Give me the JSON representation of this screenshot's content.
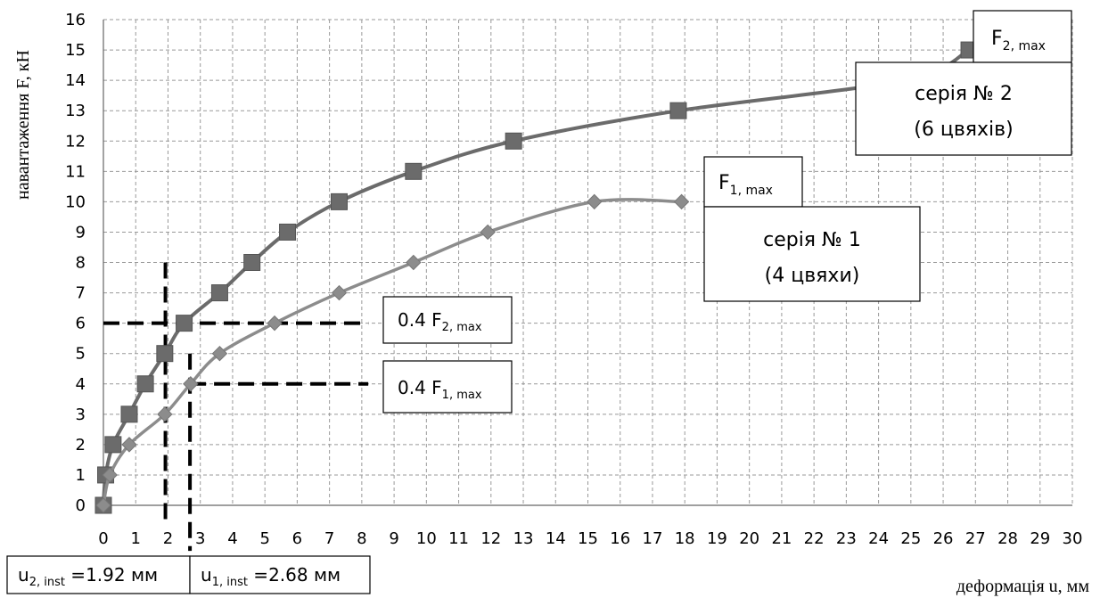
{
  "chart_data": {
    "type": "line",
    "xlabel": "деформація  u, мм",
    "ylabel": "навантаження F, кН",
    "xlim": [
      0,
      30
    ],
    "ylim": [
      0,
      16
    ],
    "xticks": [
      "0",
      "1",
      "2",
      "3",
      "4",
      "5",
      "6",
      "7",
      "8",
      "9",
      "10",
      "11",
      "12",
      "13",
      "14",
      "15",
      "16",
      "17",
      "18",
      "19",
      "20",
      "21",
      "22",
      "23",
      "24",
      "25",
      "26",
      "27",
      "28",
      "29",
      "30"
    ],
    "yticks": [
      "0",
      "1",
      "2",
      "3",
      "4",
      "5",
      "6",
      "7",
      "8",
      "9",
      "10",
      "11",
      "12",
      "13",
      "14",
      "15",
      "16"
    ],
    "grid": true,
    "series": [
      {
        "marker": "square",
        "color": "#6b6b6b",
        "x": [
          0,
          0.07,
          0.3,
          0.8,
          1.3,
          1.9,
          2.5,
          3.6,
          4.6,
          5.7,
          7.3,
          9.6,
          12.7,
          17.8,
          24.8,
          26.8
        ],
        "y": [
          0,
          1,
          2,
          3,
          4,
          5,
          6,
          7,
          8,
          9,
          10,
          11,
          12,
          13,
          14,
          15
        ],
        "points": [
          [
            0,
            0
          ],
          [
            0.07,
            1
          ],
          [
            0.3,
            2
          ],
          [
            0.8,
            3
          ],
          [
            1.3,
            4
          ],
          [
            1.9,
            5
          ],
          [
            2.5,
            6
          ],
          [
            3.6,
            7
          ],
          [
            4.6,
            8
          ],
          [
            5.7,
            9
          ],
          [
            7.3,
            10
          ],
          [
            9.6,
            11
          ],
          [
            12.7,
            12
          ],
          [
            17.8,
            13
          ],
          [
            24.8,
            14
          ],
          [
            26.8,
            15
          ]
        ]
      },
      {
        "marker": "diamond",
        "color": "#8c8c8c",
        "x": [
          0,
          0.2,
          0.8,
          1.9,
          2.7,
          3.6,
          5.3,
          7.3,
          9.6,
          11.9,
          15.2,
          17.9
        ],
        "y": [
          0,
          1,
          2,
          3,
          4,
          5,
          6,
          7,
          8,
          9,
          10,
          10
        ],
        "points": [
          [
            0,
            0
          ],
          [
            0.2,
            1
          ],
          [
            0.8,
            2
          ],
          [
            1.9,
            3
          ],
          [
            2.7,
            4
          ],
          [
            3.6,
            5
          ],
          [
            5.3,
            6
          ],
          [
            7.3,
            7
          ],
          [
            9.6,
            8
          ],
          [
            11.9,
            9
          ],
          [
            15.2,
            10
          ],
          [
            17.9,
            10
          ]
        ]
      }
    ],
    "guide_lines": [
      {
        "x1": 0,
        "x2": 8.2,
        "y": 6,
        "xv": 1.92,
        "yv1": 8,
        "yv2": -0.7
      },
      {
        "x1": 2.68,
        "x2": 8.2,
        "y": 4,
        "xv": 2.68,
        "yv1": 5,
        "yv2": -1.5
      }
    ],
    "annotations": {
      "f2max": {
        "base": "F",
        "sub": "2, max"
      },
      "f1max": {
        "base": "F",
        "sub": "1, max"
      },
      "series2_label": [
        "серія № 2",
        "(6 цвяхів)"
      ],
      "series1_label": [
        "серія № 1",
        "(4 цвяхи)"
      ],
      "f2_04": {
        "prefix": "0.4 F",
        "sub": "2, max"
      },
      "f1_04": {
        "prefix": "0.4 F",
        "sub": "1, max"
      },
      "u2": {
        "base": "u",
        "sub": "2, inst",
        "value": " =1.92 мм"
      },
      "u1": {
        "base": "u",
        "sub": "1, inst",
        "value": " =2.68 мм"
      }
    }
  }
}
